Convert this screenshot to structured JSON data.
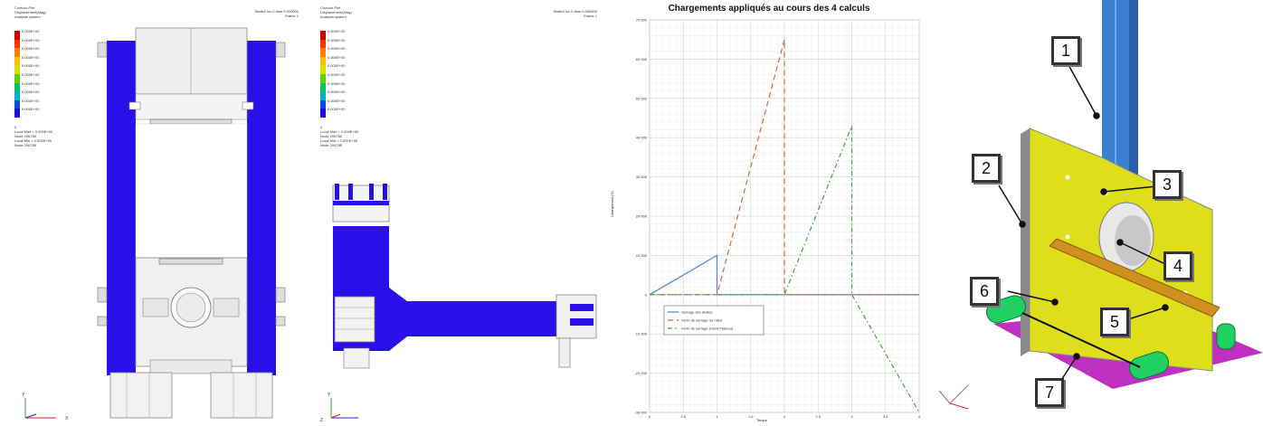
{
  "panel1": {
    "legend_lines": [
      "Contour Plot",
      "Displacement(Mag)",
      "Analysis system"
    ],
    "colorbar_labels": [
      "0.000E+00",
      "0.000E+00",
      "0.000E+00",
      "0.000E+00",
      "0.000E+00",
      "0.000E+00",
      "0.000E+00",
      "0.000E+00",
      "0.000E+00",
      "0.000E+00"
    ],
    "colorbar_colors": [
      "#d00000",
      "#ff3000",
      "#ff8000",
      "#ffc000",
      "#d8e000",
      "#60d000",
      "#00c060",
      "#00b0c0",
      "#0050e0",
      "#2010e0"
    ],
    "maxmin_lines": [
      "0",
      "Local Max = 0.000E+00",
      "Node 206785",
      "Local Min = 0.000E+00",
      "Node 206785"
    ],
    "header_lines": [
      "Static2 inc 0 time 0.000000",
      "Frame 1"
    ],
    "axis_labels": {
      "y": "Y",
      "x": "X"
    }
  },
  "panel2": {
    "legend_lines": [
      "Contour Plot",
      "Displacement(Mag)",
      "Analysis system"
    ],
    "colorbar_labels": [
      "0.000E+00",
      "0.000E+00",
      "0.000E+00",
      "0.000E+00",
      "0.000E+00",
      "0.000E+00",
      "0.000E+00",
      "0.000E+00",
      "0.000E+00",
      "0.000E+00"
    ],
    "maxmin_lines": [
      "0",
      "Local Max = 0.000E+00",
      "Node 206785",
      "Local Min = 0.000E+00",
      "Node 206785"
    ],
    "header_lines": [
      "Static2 inc 0 time 0.000000",
      "Frame 1"
    ],
    "axis_labels": {
      "y": "Y",
      "x": "Z"
    }
  },
  "chart_data": {
    "type": "line",
    "title": "Chargements appliqués au cours des 4 calculs",
    "xlabel": "Temps",
    "ylabel": "Chargement (N)",
    "xlim": [
      0,
      4
    ],
    "ylim": [
      -30000,
      70000
    ],
    "x_ticks": [
      "0",
      "0.5",
      "1",
      "1.5",
      "2",
      "2.5",
      "3",
      "3.5",
      "4"
    ],
    "y_ticks": [
      "70 000",
      "60 000",
      "50 000",
      "40 000",
      "30 000",
      "20 000",
      "10 000",
      "0",
      "-10 000",
      "-20 000",
      "-30 000"
    ],
    "grid": true,
    "legend_position": "bottom-left",
    "series": [
      {
        "name": "Serrage des étoiles",
        "color": "#5080d0",
        "dash": "solid",
        "points": [
          [
            0,
            0
          ],
          [
            1,
            10000
          ],
          [
            1,
            0
          ],
          [
            4,
            0
          ]
        ]
      },
      {
        "name": "Vérin de serrage du rabot",
        "color": "#e06040",
        "dash": "dashed",
        "points": [
          [
            0,
            0
          ],
          [
            1,
            0
          ],
          [
            2,
            65000
          ],
          [
            2,
            0
          ],
          [
            4,
            0
          ]
        ]
      },
      {
        "name": "Vérin de serrage (rabot Plateau)",
        "color": "#40a040",
        "dash": "dashdot",
        "points": [
          [
            0,
            0
          ],
          [
            2,
            0
          ],
          [
            3,
            43000
          ],
          [
            3,
            0
          ],
          [
            4,
            -30000
          ]
        ]
      }
    ]
  },
  "panel4": {
    "callouts": [
      "1",
      "2",
      "3",
      "4",
      "5",
      "6",
      "7"
    ]
  }
}
